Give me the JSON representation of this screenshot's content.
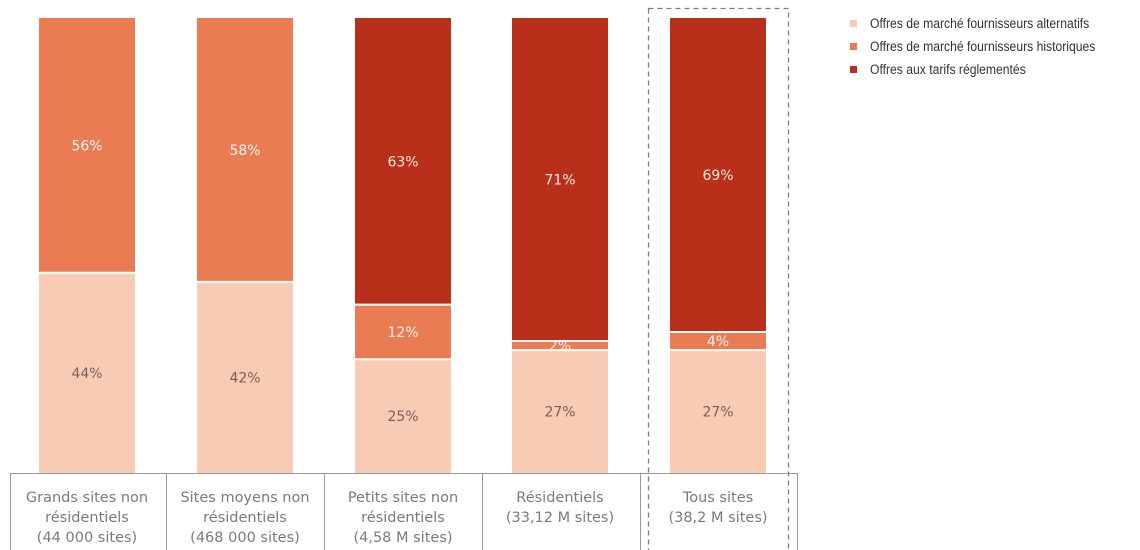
{
  "chart_data": {
    "type": "bar",
    "stacked": true,
    "percent": true,
    "categories": [
      [
        "Grands sites non",
        "résidentiels",
        "(44 000 sites)"
      ],
      [
        "Sites moyens non",
        "résidentiels",
        "(468 000 sites)"
      ],
      [
        "Petits sites non",
        "résidentiels",
        "(4,58 M sites)"
      ],
      [
        "Résidentiels",
        "(33,12 M sites)"
      ],
      [
        "Tous sites",
        "(38,2 M sites)"
      ]
    ],
    "series": [
      {
        "name": "Offres de marché fournisseurs alternatifs",
        "color": "#f8cbb4",
        "values": [
          44,
          42,
          25,
          27,
          27
        ],
        "labels": [
          "44%",
          "42%",
          "25%",
          "27%",
          "27%"
        ]
      },
      {
        "name": "Offres de marché fournisseurs historiques",
        "color": "#ea7c54",
        "values": [
          56,
          58,
          12,
          2,
          4
        ],
        "labels": [
          "56%",
          "58%",
          "12%",
          "2%",
          "4%"
        ]
      },
      {
        "name": "Offres aux tarifs réglementés",
        "color": "#b83019",
        "values": [
          0,
          0,
          63,
          71,
          69
        ],
        "labels": [
          "",
          "",
          "63%",
          "71%",
          "69%"
        ]
      }
    ],
    "ylim": [
      0,
      100
    ],
    "highlighted_category": "Tous sites",
    "legend_position": "top-right",
    "grid": false
  }
}
